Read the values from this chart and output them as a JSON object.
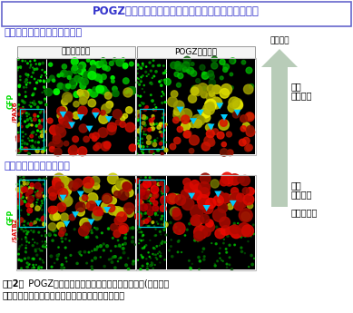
{
  "title": "POGZの機能低下により、神経細胞の発達が遅くなる",
  "title_color": "#3333cc",
  "title_border": "#6666cc",
  "section1_label": "神経幹細胞（黄色）が増える",
  "section2_label": "神経細胞（黄色）が減る",
  "section_label_color": "#3333cc",
  "col1_header": "コントロール",
  "col2_header": "POGZ機能低下",
  "row1_ylabel_gfp": "GFP",
  "row1_ylabel_marker": "/PAX6",
  "row2_ylabel_gfp": "GFP",
  "row2_ylabel_marker": "/SATB2",
  "ylabel_color_gfp": "#00dd00",
  "ylabel_color_marker": "#dd0000",
  "arrow_label": "神経発達",
  "arrow_color": "#b8ccb8",
  "label_mature1": "成熟",
  "label_mature2": "神経細胞",
  "label_immature1": "未熟",
  "label_immature2": "神経細胞",
  "label_stem": "神経幹細胞",
  "caption_bold": "（図2）",
  "caption_rest": "  POGZの機能低下により、神経幹細胞が増え(上右）、",
  "caption2": "　神経幹細胞から分化した神経細胞が減る（下右）",
  "bg_color": "#ffffff"
}
